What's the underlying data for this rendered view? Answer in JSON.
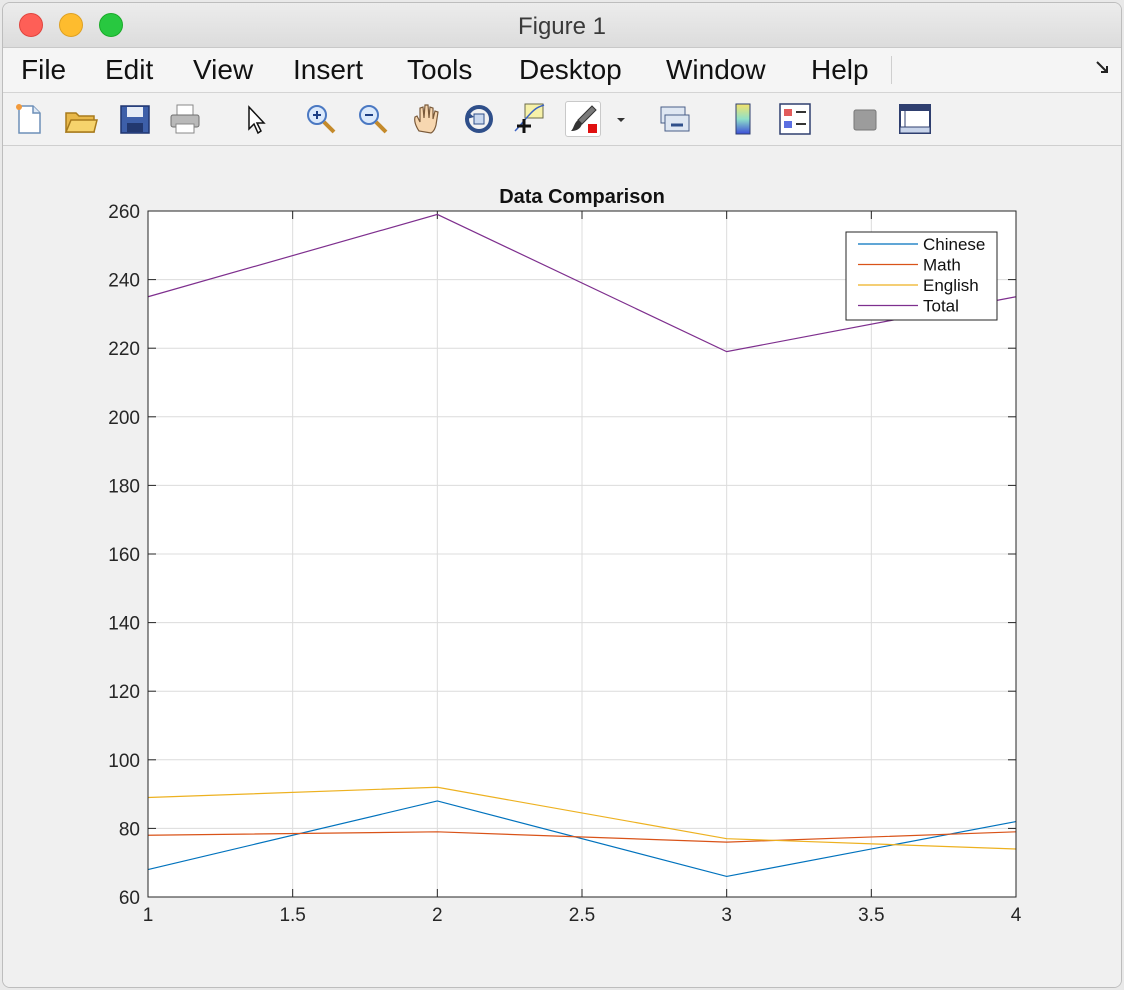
{
  "window": {
    "title": "Figure 1"
  },
  "menu": [
    "File",
    "Edit",
    "View",
    "Insert",
    "Tools",
    "Desktop",
    "Window",
    "Help"
  ],
  "toolbar": [
    {
      "name": "new-figure-icon"
    },
    {
      "name": "open-file-icon"
    },
    {
      "name": "save-icon"
    },
    {
      "name": "print-icon"
    },
    {
      "name": "edit-plot-arrow-icon"
    },
    {
      "name": "zoom-in-icon"
    },
    {
      "name": "zoom-out-icon"
    },
    {
      "name": "pan-hand-icon"
    },
    {
      "name": "rotate-3d-icon"
    },
    {
      "name": "data-cursor-icon"
    },
    {
      "name": "brush-icon"
    },
    {
      "name": "brush-dropdown-icon"
    },
    {
      "name": "link-plot-icon"
    },
    {
      "name": "colorbar-icon"
    },
    {
      "name": "legend-icon"
    },
    {
      "name": "hide-plot-tools-icon"
    },
    {
      "name": "show-plot-tools-icon"
    }
  ],
  "chart_data": {
    "type": "line",
    "title": "Data Comparison",
    "xlabel": "",
    "ylabel": "",
    "x": [
      1,
      2,
      3,
      4
    ],
    "xlim": [
      1,
      4
    ],
    "ylim": [
      60,
      260
    ],
    "xticks": [
      "1",
      "1.5",
      "2",
      "2.5",
      "3",
      "3.5",
      "4"
    ],
    "xtick_values": [
      1,
      1.5,
      2,
      2.5,
      3,
      3.5,
      4
    ],
    "yticks": [
      "60",
      "80",
      "100",
      "120",
      "140",
      "160",
      "180",
      "200",
      "220",
      "240",
      "260"
    ],
    "ytick_values": [
      60,
      80,
      100,
      120,
      140,
      160,
      180,
      200,
      220,
      240,
      260
    ],
    "grid": true,
    "legend_position": "top-right",
    "series": [
      {
        "name": "Chinese",
        "values": [
          68,
          88,
          66,
          82
        ],
        "color": "#0072BD"
      },
      {
        "name": "Math",
        "values": [
          78,
          79,
          76,
          79
        ],
        "color": "#D95319"
      },
      {
        "name": "English",
        "values": [
          89,
          92,
          77,
          74
        ],
        "color": "#EDB120"
      },
      {
        "name": "Total",
        "values": [
          235,
          259,
          219,
          235
        ],
        "color": "#7E2F8E"
      }
    ]
  }
}
